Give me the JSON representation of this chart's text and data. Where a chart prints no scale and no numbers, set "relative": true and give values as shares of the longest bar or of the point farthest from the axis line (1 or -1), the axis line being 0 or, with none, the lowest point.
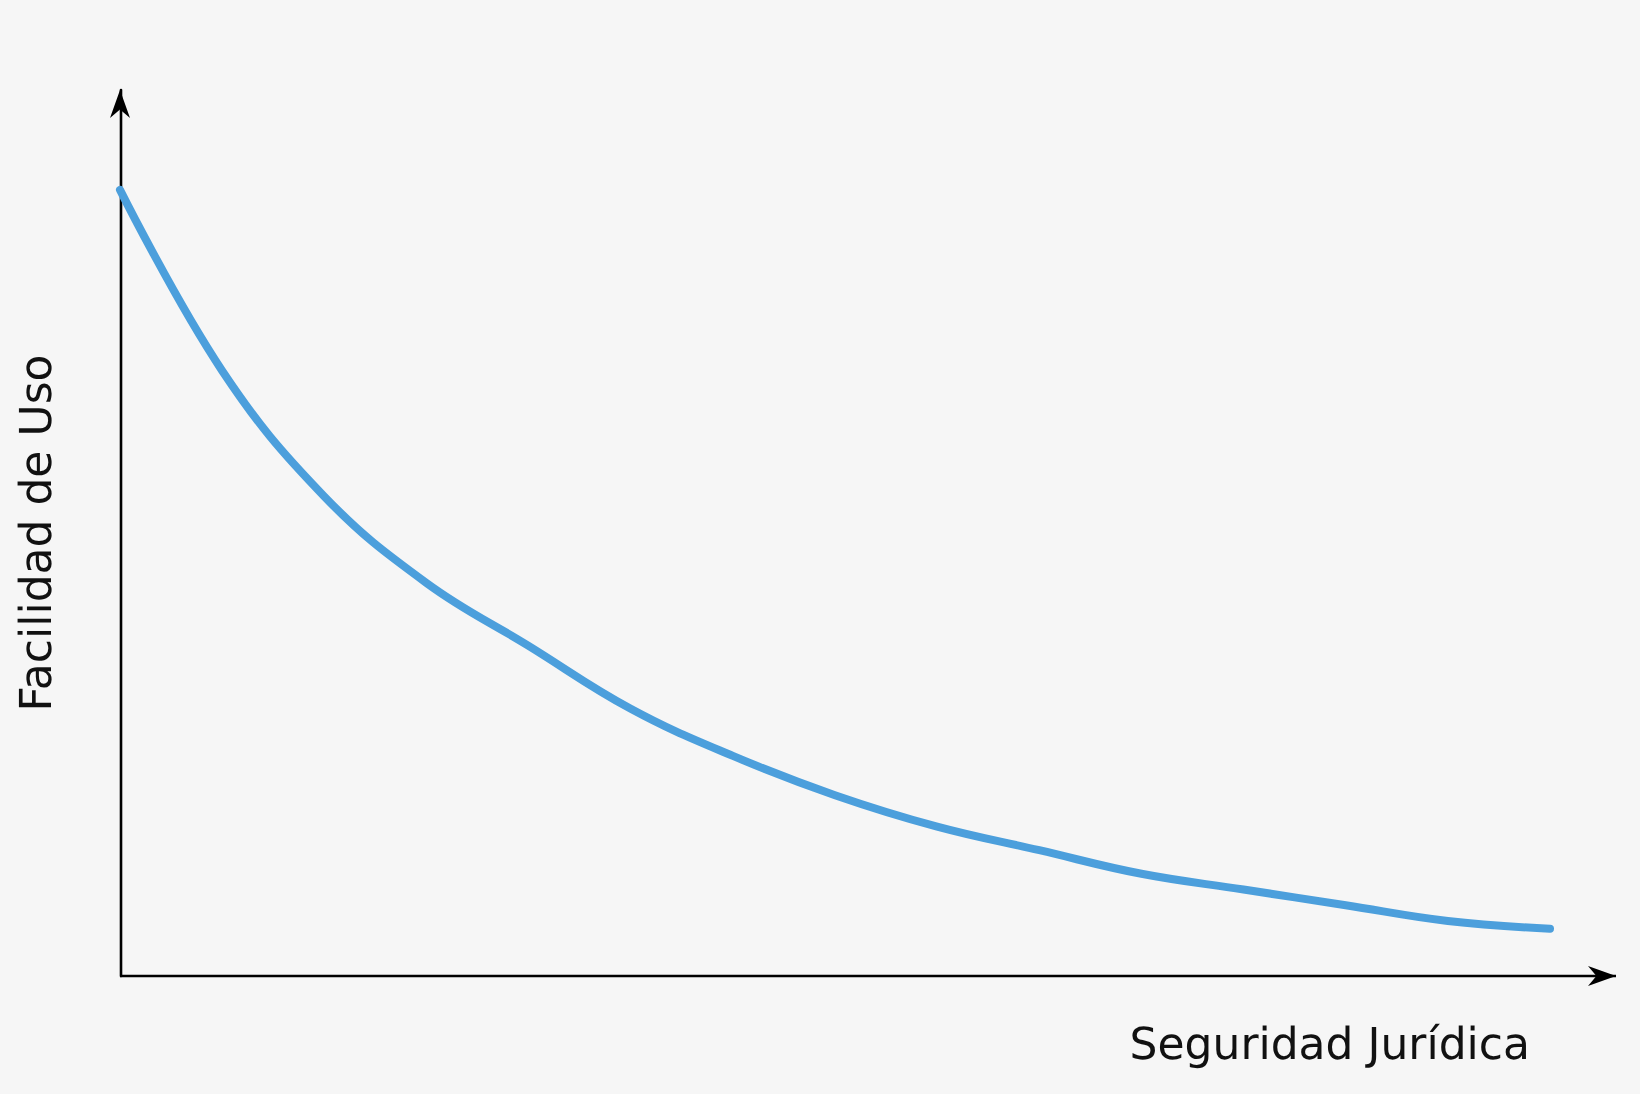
{
  "chart_data": {
    "type": "line",
    "relative": true,
    "xlabel": "Seguridad Jurídica",
    "ylabel": "Facilidad de Uso",
    "categories": [
      null,
      null,
      null,
      null,
      null,
      null,
      null,
      null,
      null,
      null,
      null,
      null,
      null,
      null,
      null
    ],
    "series": [
      {
        "color": "#4c9fdc",
        "values": [
          1.0,
          0.77,
          0.61,
          0.5,
          0.42,
          0.34,
          0.28,
          0.23,
          0.19,
          0.16,
          0.13,
          0.11,
          0.09,
          0.07,
          0.06
        ]
      }
    ],
    "grid": false,
    "marker": "none",
    "line_style": "solid"
  }
}
